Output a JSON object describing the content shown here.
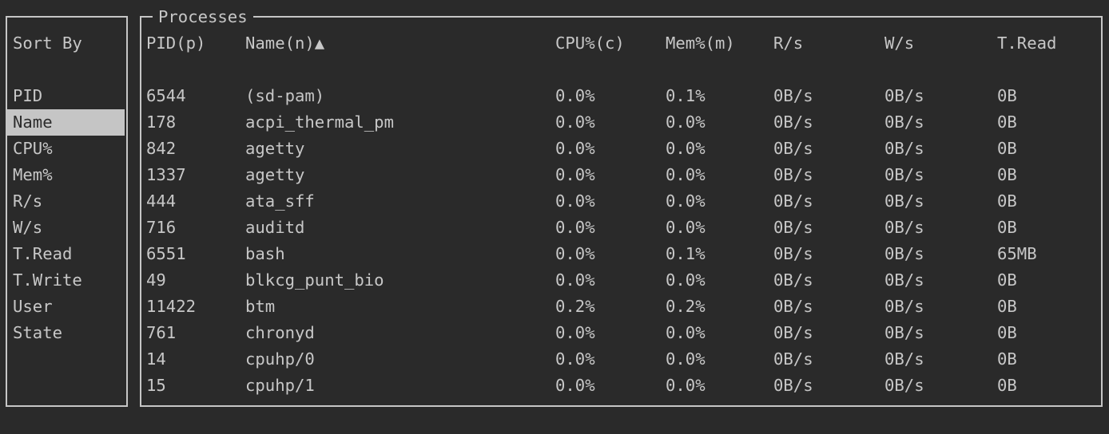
{
  "colors": {
    "background": "#2a2a2a",
    "foreground": "#c7c7c7",
    "border": "#c6c6c6",
    "selected_bg": "#c5c5c5",
    "selected_fg": "#2d2d2d"
  },
  "sort_panel": {
    "title": "Sort By",
    "items": [
      {
        "label": "PID",
        "selected": false
      },
      {
        "label": "Name",
        "selected": true
      },
      {
        "label": "CPU%",
        "selected": false
      },
      {
        "label": "Mem%",
        "selected": false
      },
      {
        "label": "R/s",
        "selected": false
      },
      {
        "label": "W/s",
        "selected": false
      },
      {
        "label": "T.Read",
        "selected": false
      },
      {
        "label": "T.Write",
        "selected": false
      },
      {
        "label": "User",
        "selected": false
      },
      {
        "label": "State",
        "selected": false
      }
    ]
  },
  "processes_panel": {
    "title": "Processes",
    "columns": [
      {
        "label": "PID(p)"
      },
      {
        "label": "Name(n)▲"
      },
      {
        "label": "CPU%(c)"
      },
      {
        "label": "Mem%(m)"
      },
      {
        "label": "R/s"
      },
      {
        "label": "W/s"
      },
      {
        "label": "T.Read"
      }
    ],
    "rows": [
      [
        "6544",
        "(sd-pam)",
        "0.0%",
        "0.1%",
        "0B/s",
        "0B/s",
        "0B"
      ],
      [
        "178",
        "acpi_thermal_pm",
        "0.0%",
        "0.0%",
        "0B/s",
        "0B/s",
        "0B"
      ],
      [
        "842",
        "agetty",
        "0.0%",
        "0.0%",
        "0B/s",
        "0B/s",
        "0B"
      ],
      [
        "1337",
        "agetty",
        "0.0%",
        "0.0%",
        "0B/s",
        "0B/s",
        "0B"
      ],
      [
        "444",
        "ata_sff",
        "0.0%",
        "0.0%",
        "0B/s",
        "0B/s",
        "0B"
      ],
      [
        "716",
        "auditd",
        "0.0%",
        "0.0%",
        "0B/s",
        "0B/s",
        "0B"
      ],
      [
        "6551",
        "bash",
        "0.0%",
        "0.1%",
        "0B/s",
        "0B/s",
        "65MB"
      ],
      [
        "49",
        "blkcg_punt_bio",
        "0.0%",
        "0.0%",
        "0B/s",
        "0B/s",
        "0B"
      ],
      [
        "11422",
        "btm",
        "0.2%",
        "0.2%",
        "0B/s",
        "0B/s",
        "0B"
      ],
      [
        "761",
        "chronyd",
        "0.0%",
        "0.0%",
        "0B/s",
        "0B/s",
        "0B"
      ],
      [
        "14",
        "cpuhp/0",
        "0.0%",
        "0.0%",
        "0B/s",
        "0B/s",
        "0B"
      ],
      [
        "15",
        "cpuhp/1",
        "0.0%",
        "0.0%",
        "0B/s",
        "0B/s",
        "0B"
      ]
    ]
  }
}
